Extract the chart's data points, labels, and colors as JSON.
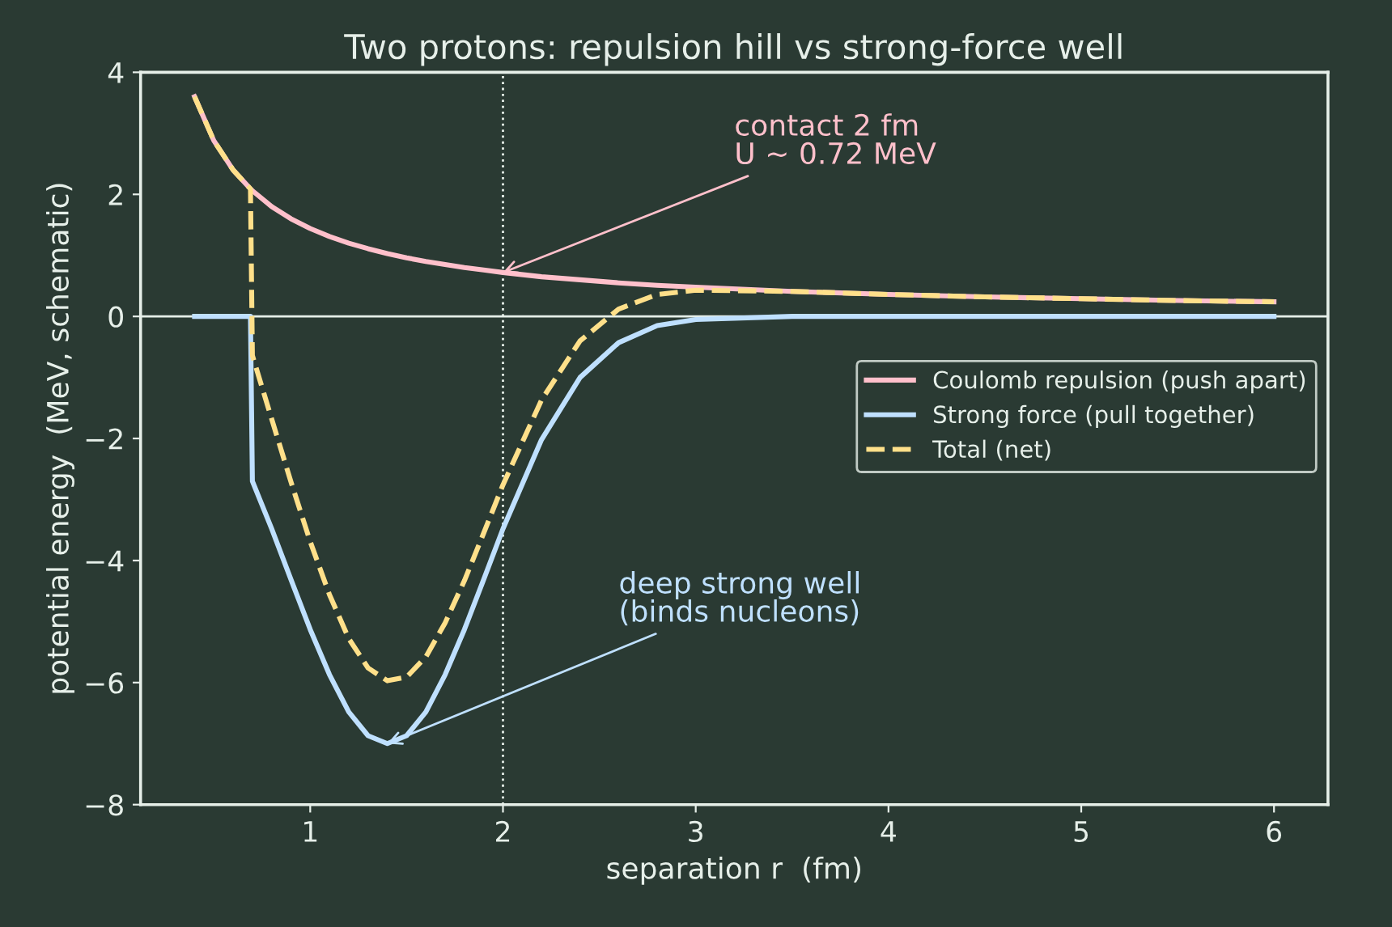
{
  "chart_data": {
    "type": "line",
    "title": "Two protons: repulsion hill vs strong-force well",
    "xlabel": "separation r  (fm)",
    "ylabel": "potential energy  (MeV, schematic)",
    "xlim": [
      0.12,
      6.28
    ],
    "ylim": [
      -8,
      4
    ],
    "xticks": [
      1,
      2,
      3,
      4,
      5,
      6
    ],
    "yticks": [
      -8,
      -6,
      -4,
      -2,
      0,
      2,
      4
    ],
    "grid": false,
    "legend": "right",
    "marker": "none",
    "series": [
      {
        "name": "Coulomb repulsion (push apart)",
        "color": "#ffc0cb",
        "line_style": "solid",
        "x": [
          0.4,
          0.5,
          0.6,
          0.69,
          0.7,
          0.8,
          0.9,
          1.0,
          1.1,
          1.2,
          1.3,
          1.4,
          1.5,
          1.6,
          1.7,
          1.8,
          1.9,
          2.0,
          2.2,
          2.4,
          2.6,
          2.8,
          3.0,
          3.5,
          4,
          4.5,
          5,
          5.5,
          6
        ],
        "values": [
          3.6,
          2.88,
          2.4,
          2.09,
          2.06,
          1.8,
          1.6,
          1.44,
          1.31,
          1.2,
          1.11,
          1.03,
          0.96,
          0.9,
          0.85,
          0.8,
          0.76,
          0.72,
          0.65,
          0.6,
          0.55,
          0.51,
          0.48,
          0.41,
          0.36,
          0.32,
          0.29,
          0.26,
          0.24
        ]
      },
      {
        "name": "Strong force (pull together)",
        "color": "#bfe0ff",
        "line_style": "solid",
        "x": [
          0.4,
          0.5,
          0.6,
          0.69,
          0.7,
          0.8,
          0.9,
          1.0,
          1.1,
          1.2,
          1.3,
          1.4,
          1.5,
          1.6,
          1.7,
          1.8,
          1.9,
          2.0,
          2.2,
          2.4,
          2.6,
          2.8,
          3.0,
          3.5,
          4,
          4.5,
          5,
          5.5,
          6
        ],
        "values": [
          0,
          0,
          0,
          0,
          -2.7,
          -3.48,
          -4.31,
          -5.13,
          -5.87,
          -6.48,
          -6.87,
          -7,
          -6.87,
          -6.48,
          -5.87,
          -5.13,
          -4.31,
          -3.48,
          -2.02,
          -1.0,
          -0.43,
          -0.15,
          -0.05,
          0,
          0,
          0,
          0,
          0,
          0
        ]
      },
      {
        "name": "Total (net)",
        "color": "#ffe08a",
        "line_style": "dashed",
        "x": [
          0.4,
          0.5,
          0.6,
          0.69,
          0.7,
          0.8,
          0.9,
          1.0,
          1.1,
          1.2,
          1.3,
          1.4,
          1.5,
          1.6,
          1.7,
          1.8,
          1.9,
          2.0,
          2.2,
          2.4,
          2.6,
          2.8,
          3.0,
          3.5,
          4,
          4.5,
          5,
          5.5,
          6
        ],
        "values": [
          3.6,
          2.88,
          2.4,
          2.09,
          -0.64,
          -1.68,
          -2.71,
          -3.69,
          -4.56,
          -5.28,
          -5.76,
          -5.97,
          -5.91,
          -5.58,
          -5.02,
          -4.33,
          -3.55,
          -2.76,
          -1.37,
          -0.4,
          0.12,
          0.36,
          0.43,
          0.41,
          0.36,
          0.32,
          0.29,
          0.26,
          0.24
        ]
      }
    ],
    "ref_lines": [
      {
        "axis": "y",
        "value": 0,
        "color": "#e6efe9",
        "line_style": "solid"
      },
      {
        "axis": "x",
        "value": 2,
        "color": "#e6efe9",
        "line_style": "dotted"
      }
    ],
    "annotations": [
      {
        "text": "contact 2 fm\nU ~ 0.72 MeV",
        "x": 2,
        "y": 0.72
      },
      {
        "text": "deep strong well\n(binds nucleons)",
        "x": 1.4,
        "y": -7
      }
    ]
  }
}
